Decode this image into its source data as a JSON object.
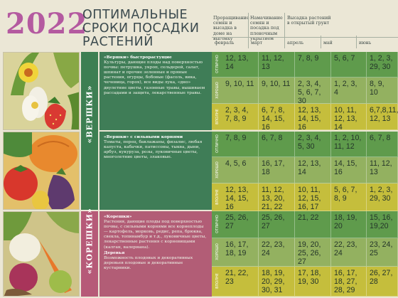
{
  "header": {
    "year": "2022",
    "title_lines": [
      "ОПТИМАЛЬНЫЕ",
      "СРОКИ ПОСАДКИ",
      "РАСТЕНИЙ"
    ]
  },
  "columns": [
    {
      "heading": "Проращивание семян и высадка в доме на выгонку",
      "month": "февраль"
    },
    {
      "heading": "Намачивание семян и посадка под пленочным укрытием",
      "month": "март"
    },
    {
      "heading": "Высадка растений в открытый грунт",
      "month": "апрель"
    },
    {
      "heading": "",
      "month": "май"
    },
    {
      "heading": "",
      "month": "июнь"
    }
  ],
  "sections": [
    {
      "band_label": "«ВЕРШКИ»",
      "desc_title": "«Вершки» быстрорастущие",
      "desc_body": "Культуры, дающие плоды над поверхностью почвы: петрушка, укроп, сельдерей, салат, шпинат и прочие зеленные и пряные растения, огурцы, бобовые (фасоль, вика, чечевица, горох), все виды лука, «дно» двулетние цветы, газонные травы, вышиваем рассадами и защита, лекарственные травы.",
      "rows": [
        {
          "label": "ОТЛИЧНО",
          "cells": [
            "12, 13, 14",
            "11, 12, 13",
            "7, 8, 9",
            "5, 6, 7",
            "1, 2, 3, 29, 30"
          ]
        },
        {
          "label": "ХОРОШО",
          "cells": [
            "9, 10, 11",
            "9, 10, 11",
            "2, 3, 4, 5, 6, 7, 30",
            "1, 2, 3, 4",
            "8, 9, 10"
          ]
        },
        {
          "label": "ВПОЛНЕ",
          "cells": [
            "2, 3, 4, 7, 8, 9",
            "6, 7, 8, 14, 15, 16",
            "12, 13, 14, 15, 16",
            "10, 11, 12, 13, 14",
            "6,7,8,11, 12, 13"
          ]
        }
      ]
    },
    {
      "band_label": "",
      "desc_title": "«Вершки» с сильными корнями",
      "desc_body": "Томаты, перец, баклажаны, физалис, любая капуста, кабачки, патиссоны, тыква, дыни, арбуз, кукуруза, розы, луковичные цветы, многолетние цветы, злаковые.",
      "rows": [
        {
          "label": "ОТЛИЧНО",
          "cells": [
            "7, 8, 9",
            "6, 7, 8",
            "2, 3, 4, 5, 30",
            "1, 2, 10, 11, 12",
            "6, 7, 8"
          ]
        },
        {
          "label": "ХОРОШО",
          "cells": [
            "4, 5, 6",
            "16, 17, 18",
            "12, 13, 14",
            "14, 15, 16",
            "11, 12, 13"
          ]
        },
        {
          "label": "ВПОЛНЕ",
          "cells": [
            "12, 13, 14, 15, 16",
            "11, 12, 13, 20, 21, 22",
            "10, 11, 12, 15, 16, 17",
            "5, 6, 7, 8, 9",
            "1, 2, 3, 29, 30"
          ]
        }
      ]
    },
    {
      "band_label": "«КОРЕШКИ»",
      "desc_title": "«Корешки»",
      "desc_body": "Растения, дающие плоды под поверхностью почвы, с сильными корнями все корнеплоды — картофель, морковь, редис, репа, брюква, свекла, топинамбур и т.д., луковичные цветы, лекарственные растения с корневищами (калган, валериана).",
      "desc_title2": "Деревья",
      "desc_body2": "Возможность плодовых и декоративных деревьев плодовые и декоративные кустарники.",
      "rows": [
        {
          "label": "ОТЛИЧНО",
          "cells": [
            "25, 26, 27",
            "25, 26, 27",
            "21, 22",
            "18, 19, 20",
            "15, 16, 19,20"
          ]
        },
        {
          "label": "ХОРОШО",
          "cells": [
            "16, 17, 18, 19",
            "22, 23, 24",
            "19, 20, 25, 26, 27",
            "22, 23, 24",
            "23, 24, 25"
          ]
        },
        {
          "label": "ВПОЛНЕ",
          "cells": [
            "21, 22, 23",
            "18, 19, 20, 29, 30, 31",
            "17, 18, 19, 30",
            "16, 17, 18, 27, 28, 29",
            "26, 27, 28"
          ]
        }
      ]
    }
  ],
  "colors": {
    "row_top": "#5f9b4c",
    "row_mid": "#93b160",
    "row_low": "#c5be3c",
    "band_green": "#3d7f52",
    "band_pink": "#b65a78",
    "desc_green": "#3f7d57",
    "desc_pink": "#b25d76"
  }
}
